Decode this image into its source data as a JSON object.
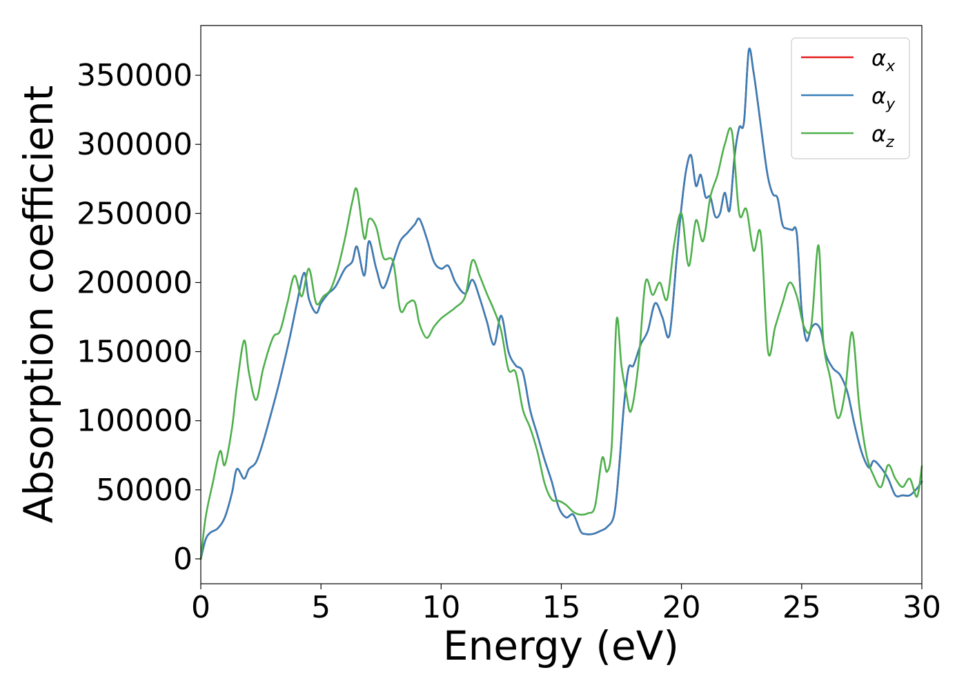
{
  "chart_data": {
    "type": "line",
    "title": "",
    "xlabel": "Energy (eV)",
    "ylabel": "Absorption coefficient",
    "xlim": [
      0,
      30
    ],
    "ylim": [
      -18000,
      386000
    ],
    "xticks": [
      0,
      5,
      10,
      15,
      20,
      25,
      30
    ],
    "yticks": [
      0,
      50000,
      100000,
      150000,
      200000,
      250000,
      300000,
      350000
    ],
    "grid": false,
    "legend_position": "top-right",
    "series": [
      {
        "name": "α",
        "subscript": "x",
        "color": "#e41a1c",
        "x": [
          0,
          0.2,
          0.4,
          0.7,
          1,
          1.3,
          1.5,
          1.8,
          2,
          2.3,
          2.6,
          3,
          3.3,
          3.7,
          4,
          4.3,
          4.5,
          4.8,
          5,
          5.3,
          5.6,
          6,
          6.3,
          6.5,
          6.8,
          7,
          7.3,
          7.6,
          8,
          8.3,
          8.6,
          8.9,
          9.1,
          9.4,
          9.7,
          10,
          10.3,
          10.6,
          11,
          11.3,
          11.6,
          11.9,
          12.2,
          12.5,
          12.8,
          13.1,
          13.4,
          13.7,
          14,
          14.3,
          14.6,
          14.9,
          15.2,
          15.5,
          15.8,
          16,
          16.3,
          16.6,
          16.9,
          17.2,
          17.4,
          17.6,
          17.8,
          18,
          18.3,
          18.6,
          18.9,
          19.2,
          19.5,
          19.8,
          20,
          20.2,
          20.4,
          20.6,
          20.8,
          21,
          21.2,
          21.4,
          21.6,
          21.8,
          22,
          22.2,
          22.4,
          22.6,
          22.8,
          23,
          23.2,
          23.4,
          23.6,
          23.8,
          24,
          24.2,
          24.4,
          24.6,
          24.8,
          25,
          25.2,
          25.4,
          25.6,
          25.8,
          26,
          26.3,
          26.6,
          26.9,
          27.2,
          27.5,
          27.8,
          28,
          28.3,
          28.6,
          28.9,
          29.2,
          29.5,
          29.8,
          30
        ],
        "values": [
          0,
          14000,
          19000,
          22000,
          30000,
          48000,
          65000,
          58000,
          65000,
          70000,
          85000,
          110000,
          130000,
          160000,
          185000,
          207000,
          188000,
          178000,
          185000,
          192000,
          197000,
          210000,
          215000,
          226000,
          205000,
          230000,
          210000,
          196000,
          215000,
          230000,
          236000,
          242000,
          246000,
          232000,
          215000,
          210000,
          212000,
          200000,
          192000,
          202000,
          189000,
          172000,
          155000,
          176000,
          150000,
          140000,
          135000,
          108000,
          90000,
          72000,
          56000,
          37000,
          30000,
          32000,
          20000,
          18000,
          18000,
          20000,
          23000,
          32000,
          65000,
          110000,
          138000,
          140000,
          155000,
          165000,
          185000,
          175000,
          162000,
          218000,
          255000,
          282000,
          292000,
          270000,
          278000,
          262000,
          262000,
          248000,
          250000,
          265000,
          252000,
          290000,
          312000,
          316000,
          368000,
          352000,
          327000,
          300000,
          276000,
          264000,
          261000,
          242000,
          239000,
          238000,
          235000,
          180000,
          158000,
          167000,
          170000,
          165000,
          148000,
          138000,
          133000,
          121000,
          97000,
          77000,
          66000,
          71000,
          66000,
          58000,
          46000,
          46000,
          46000,
          51000,
          56000
        ]
      },
      {
        "name": "α",
        "subscript": "y",
        "color": "#377eb8",
        "x": [
          0,
          0.2,
          0.4,
          0.7,
          1,
          1.3,
          1.5,
          1.8,
          2,
          2.3,
          2.6,
          3,
          3.3,
          3.7,
          4,
          4.3,
          4.5,
          4.8,
          5,
          5.3,
          5.6,
          6,
          6.3,
          6.5,
          6.8,
          7,
          7.3,
          7.6,
          8,
          8.3,
          8.6,
          8.9,
          9.1,
          9.4,
          9.7,
          10,
          10.3,
          10.6,
          11,
          11.3,
          11.6,
          11.9,
          12.2,
          12.5,
          12.8,
          13.1,
          13.4,
          13.7,
          14,
          14.3,
          14.6,
          14.9,
          15.2,
          15.5,
          15.8,
          16,
          16.3,
          16.6,
          16.9,
          17.2,
          17.4,
          17.6,
          17.8,
          18,
          18.3,
          18.6,
          18.9,
          19.2,
          19.5,
          19.8,
          20,
          20.2,
          20.4,
          20.6,
          20.8,
          21,
          21.2,
          21.4,
          21.6,
          21.8,
          22,
          22.2,
          22.4,
          22.6,
          22.8,
          23,
          23.2,
          23.4,
          23.6,
          23.8,
          24,
          24.2,
          24.4,
          24.6,
          24.8,
          25,
          25.2,
          25.4,
          25.6,
          25.8,
          26,
          26.3,
          26.6,
          26.9,
          27.2,
          27.5,
          27.8,
          28,
          28.3,
          28.6,
          28.9,
          29.2,
          29.5,
          29.8,
          30
        ],
        "values": [
          0,
          14000,
          19000,
          22000,
          30000,
          48000,
          65000,
          58000,
          65000,
          70000,
          85000,
          110000,
          130000,
          160000,
          185000,
          207000,
          188000,
          178000,
          185000,
          192000,
          197000,
          210000,
          215000,
          226000,
          205000,
          230000,
          210000,
          196000,
          215000,
          230000,
          236000,
          242000,
          246000,
          232000,
          215000,
          210000,
          212000,
          200000,
          192000,
          202000,
          189000,
          172000,
          155000,
          176000,
          150000,
          140000,
          135000,
          108000,
          90000,
          72000,
          56000,
          37000,
          30000,
          32000,
          20000,
          18000,
          18000,
          20000,
          23000,
          32000,
          65000,
          110000,
          138000,
          140000,
          155000,
          165000,
          185000,
          175000,
          162000,
          218000,
          255000,
          282000,
          292000,
          270000,
          278000,
          262000,
          262000,
          248000,
          250000,
          265000,
          252000,
          290000,
          312000,
          316000,
          368000,
          352000,
          327000,
          300000,
          276000,
          264000,
          261000,
          242000,
          239000,
          238000,
          235000,
          180000,
          158000,
          167000,
          170000,
          165000,
          148000,
          138000,
          133000,
          121000,
          97000,
          77000,
          66000,
          71000,
          66000,
          58000,
          46000,
          46000,
          46000,
          51000,
          56000
        ]
      },
      {
        "name": "α",
        "subscript": "z",
        "color": "#4daf4a",
        "x": [
          0,
          0.2,
          0.5,
          0.8,
          1,
          1.3,
          1.5,
          1.8,
          2,
          2.3,
          2.6,
          3,
          3.3,
          3.6,
          3.9,
          4.2,
          4.5,
          4.8,
          5.1,
          5.4,
          5.7,
          6,
          6.3,
          6.5,
          6.8,
          7,
          7.3,
          7.6,
          8,
          8.3,
          8.6,
          8.9,
          9.1,
          9.4,
          9.7,
          10,
          10.3,
          10.6,
          11,
          11.3,
          11.6,
          11.9,
          12.2,
          12.5,
          12.8,
          13.1,
          13.4,
          13.7,
          14,
          14.3,
          14.6,
          14.9,
          15.2,
          15.5,
          15.8,
          16.1,
          16.4,
          16.7,
          16.9,
          17.1,
          17.3,
          17.5,
          17.7,
          17.9,
          18.2,
          18.5,
          18.8,
          19.1,
          19.4,
          19.7,
          20,
          20.3,
          20.6,
          20.9,
          21.2,
          21.5,
          21.8,
          22.1,
          22.4,
          22.7,
          23,
          23.3,
          23.6,
          23.9,
          24.2,
          24.5,
          24.8,
          25.1,
          25.4,
          25.7,
          25.9,
          26.2,
          26.5,
          26.8,
          27.1,
          27.4,
          27.7,
          28,
          28.3,
          28.6,
          28.9,
          29.2,
          29.5,
          29.8,
          30
        ],
        "values": [
          0,
          30000,
          55000,
          78000,
          68000,
          95000,
          125000,
          158000,
          135000,
          115000,
          138000,
          160000,
          165000,
          185000,
          205000,
          190000,
          210000,
          185000,
          190000,
          195000,
          210000,
          232000,
          258000,
          267000,
          232000,
          246000,
          240000,
          218000,
          215000,
          180000,
          185000,
          186000,
          170000,
          160000,
          168000,
          174000,
          178000,
          182000,
          190000,
          216000,
          205000,
          192000,
          180000,
          165000,
          137000,
          135000,
          108000,
          95000,
          78000,
          55000,
          43000,
          42000,
          39000,
          34000,
          32000,
          33000,
          38000,
          73000,
          63000,
          83000,
          173000,
          140000,
          120000,
          107000,
          140000,
          200000,
          191000,
          200000,
          188000,
          228000,
          250000,
          212000,
          245000,
          230000,
          262000,
          278000,
          300000,
          309000,
          250000,
          253000,
          223000,
          235000,
          150000,
          168000,
          185000,
          200000,
          190000,
          168000,
          169000,
          227000,
          158000,
          130000,
          102000,
          120000,
          164000,
          110000,
          75000,
          60000,
          52000,
          68000,
          58000,
          52000,
          58000,
          45000,
          67000
        ]
      }
    ]
  },
  "legend": {
    "items": [
      {
        "symbol": "α",
        "subscript": "x",
        "color": "#e41a1c"
      },
      {
        "symbol": "α",
        "subscript": "y",
        "color": "#377eb8"
      },
      {
        "symbol": "α",
        "subscript": "z",
        "color": "#4daf4a"
      }
    ]
  }
}
